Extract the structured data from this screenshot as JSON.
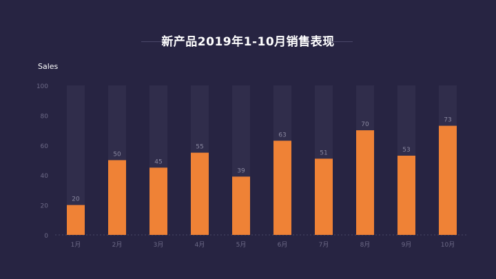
{
  "chart_data": {
    "type": "bar",
    "title": "新产品2019年1-10月销售表现",
    "ylabel": "Sales",
    "xlabel": "",
    "categories": [
      "1月",
      "2月",
      "3月",
      "4月",
      "5月",
      "6月",
      "7月",
      "8月",
      "9月",
      "10月"
    ],
    "values": [
      20,
      50,
      45,
      55,
      39,
      63,
      51,
      70,
      53,
      73
    ],
    "ylim": [
      0,
      100
    ],
    "yticks": [
      0,
      20,
      40,
      60,
      80,
      100
    ],
    "background_bars_to_max": true,
    "colors": {
      "bar": "#ef8236",
      "background_bar": "#302d4b",
      "label": "#8a88a0",
      "tick": "#6d6a87",
      "axis": "#4a4768"
    }
  }
}
